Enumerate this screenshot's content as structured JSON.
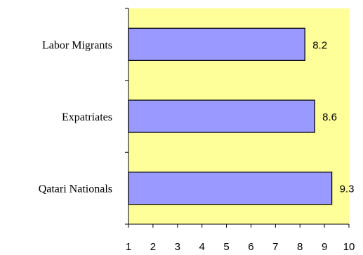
{
  "chart_data": {
    "type": "bar",
    "orientation": "horizontal",
    "categories": [
      "Labor Migrants",
      "Expatriates",
      "Qatari Nationals"
    ],
    "values": [
      8.2,
      8.6,
      9.3
    ],
    "data_labels": [
      "8.2",
      "8.6",
      "9.3"
    ],
    "x_ticks": [
      "1",
      "2",
      "3",
      "4",
      "5",
      "6",
      "7",
      "8",
      "9",
      "10"
    ],
    "xlim": [
      1,
      10
    ],
    "title": "",
    "xlabel": "",
    "ylabel": "",
    "grid": false,
    "legend": "none",
    "colors": {
      "plot_background": "#ffff99",
      "bar_fill": "#9999ff",
      "bar_stroke": "#000000",
      "axis": "#000000"
    }
  }
}
